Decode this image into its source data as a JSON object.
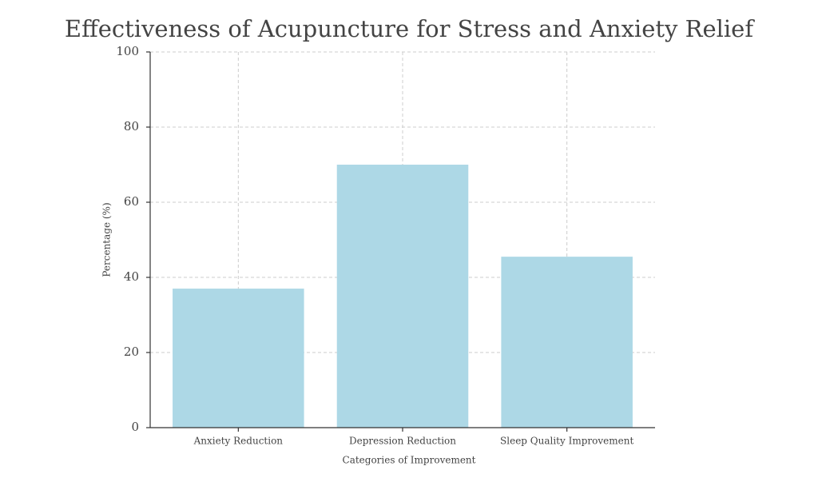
{
  "chart_data": {
    "type": "bar",
    "title": "Effectiveness of Acupuncture for Stress and Anxiety Relief",
    "xlabel": "Categories of Improvement",
    "ylabel": "Percentage (%)",
    "categories": [
      "Anxiety Reduction",
      "Depression Reduction",
      "Sleep Quality Improvement"
    ],
    "values": [
      37,
      70,
      45.5
    ],
    "color": "#add8e6",
    "ylim": [
      0,
      100
    ],
    "yticks": [
      0,
      20,
      40,
      60,
      80,
      100
    ],
    "grid": true
  }
}
